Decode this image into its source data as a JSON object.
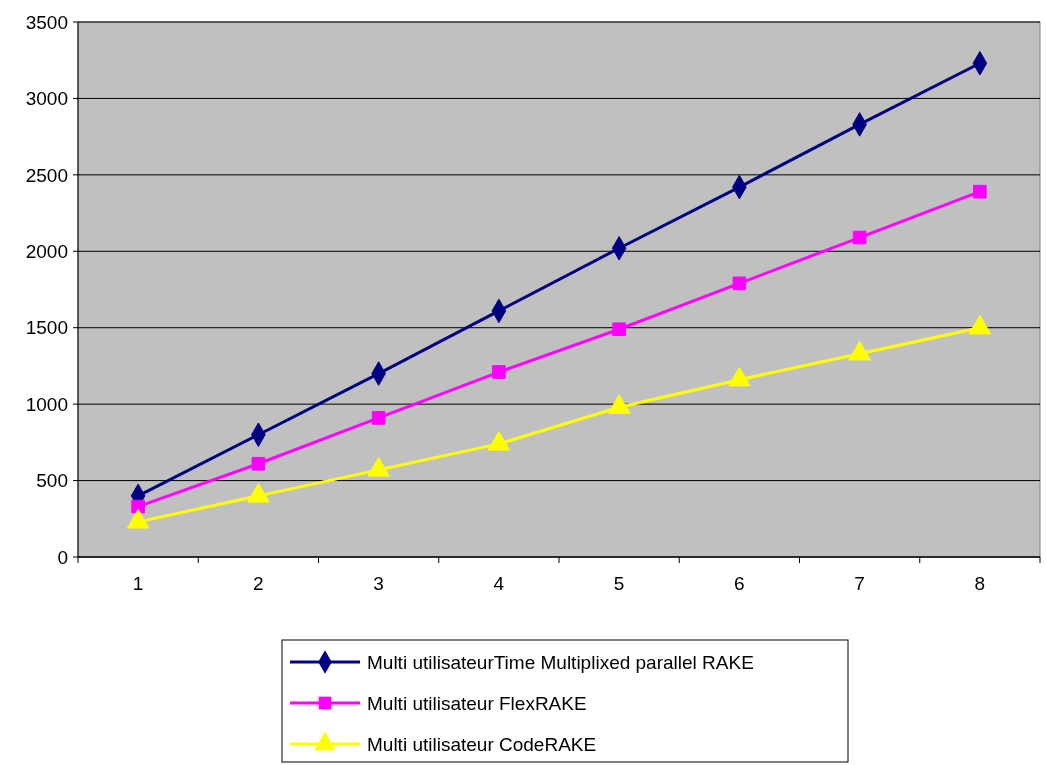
{
  "chart_data": {
    "type": "line",
    "categories": [
      "1",
      "2",
      "3",
      "4",
      "5",
      "6",
      "7",
      "8"
    ],
    "ylim": [
      0,
      3500
    ],
    "yticks": [
      0,
      500,
      1000,
      1500,
      2000,
      2500,
      3000,
      3500
    ],
    "grid": "y",
    "legend": "bottom",
    "series": [
      {
        "name": "Multi utilisateurTime Multiplixed parallel RAKE",
        "color": "#000080",
        "marker": "diamond",
        "values": [
          400,
          800,
          1200,
          1610,
          2020,
          2420,
          2830,
          3230
        ]
      },
      {
        "name": "Multi utilisateur FlexRAKE",
        "color": "#ff00ff",
        "marker": "square",
        "values": [
          330,
          610,
          910,
          1210,
          1490,
          1790,
          2090,
          2390
        ]
      },
      {
        "name": "Multi utilisateur CodeRAKE",
        "color": "#ffff00",
        "marker": "triangle",
        "values": [
          230,
          400,
          570,
          740,
          980,
          1160,
          1330,
          1500
        ]
      }
    ]
  }
}
